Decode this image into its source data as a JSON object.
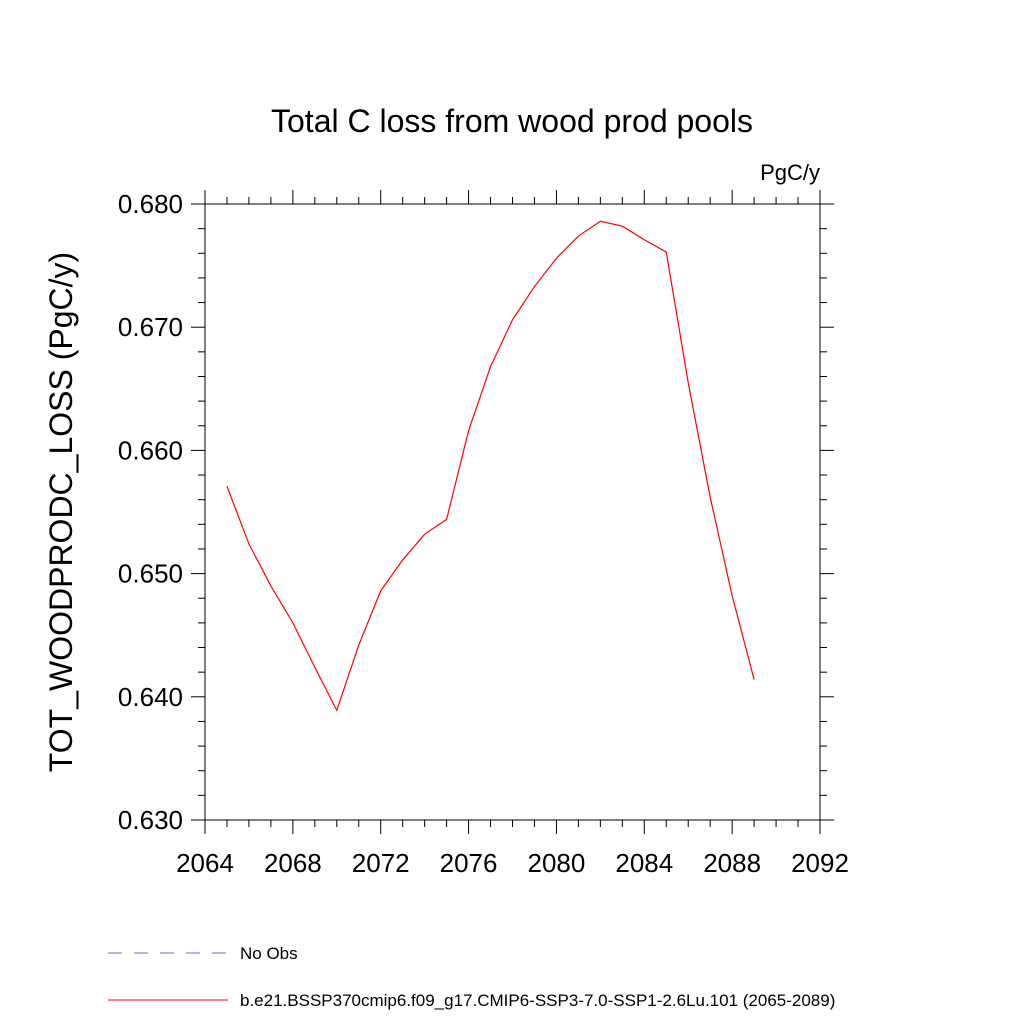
{
  "chart_data": {
    "type": "line",
    "title": "Total C loss from wood prod pools",
    "units_label": "PgC/y",
    "ylabel": "TOT_WOODPRODC_LOSS  (PgC/y)",
    "xlabel": "",
    "xlim": [
      2064,
      2092
    ],
    "ylim": [
      0.63,
      0.68
    ],
    "x_major_ticks": [
      2064,
      2068,
      2072,
      2076,
      2080,
      2084,
      2088,
      2092
    ],
    "x_tick_labels": [
      "2064",
      "2068",
      "2072",
      "2076",
      "2080",
      "2084",
      "2088",
      "2092"
    ],
    "x_minor_step": 1,
    "y_major_ticks": [
      0.63,
      0.64,
      0.65,
      0.66,
      0.67,
      0.68
    ],
    "y_tick_labels": [
      "0.630",
      "0.640",
      "0.650",
      "0.660",
      "0.670",
      "0.680"
    ],
    "y_minor_step": 0.002,
    "grid": false,
    "legend_position": "bottom",
    "series": [
      {
        "name": "b.e21.BSSP370cmip6.f09_g17.CMIP6-SSP3-7.0-SSP1-2.6Lu.101 (2065-2089)",
        "color": "#ff0000",
        "x": [
          2065,
          2066,
          2067,
          2068,
          2069,
          2070,
          2071,
          2072,
          2073,
          2074,
          2075,
          2076,
          2077,
          2078,
          2079,
          2080,
          2081,
          2082,
          2083,
          2084,
          2085,
          2086,
          2087,
          2088,
          2089
        ],
        "values": [
          0.6571,
          0.6524,
          0.649,
          0.646,
          0.6424,
          0.6389,
          0.6442,
          0.6486,
          0.6511,
          0.6532,
          0.6544,
          0.6616,
          0.6668,
          0.6706,
          0.6733,
          0.6756,
          0.6774,
          0.6786,
          0.6782,
          0.6771,
          0.6761,
          0.6655,
          0.6562,
          0.6482,
          0.6414
        ]
      }
    ],
    "legend": [
      {
        "label": "No Obs",
        "color": "#6a6acd",
        "dash": "dashed"
      },
      {
        "label": "b.e21.BSSP370cmip6.f09_g17.CMIP6-SSP3-7.0-SSP1-2.6Lu.101 (2065-2089)",
        "color": "#ff0000",
        "dash": "solid"
      }
    ]
  }
}
